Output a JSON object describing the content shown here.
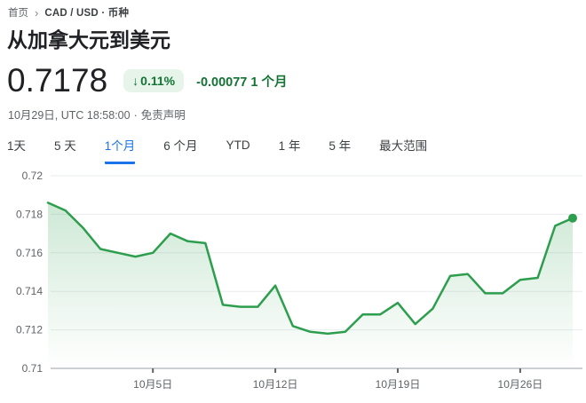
{
  "breadcrumb": {
    "home": "首页",
    "current": "CAD / USD · 币种"
  },
  "title": "从加拿大元到美元",
  "quote": {
    "price": "0.7178",
    "change_arrow": "↓",
    "change_percent": "0.11%",
    "change_absolute": "-0.00077",
    "change_period": "1 个月",
    "timestamp": "10月29日, UTC 18:58:00",
    "separator": "·",
    "disclaimer": "免责声明"
  },
  "range_tabs": [
    {
      "id": "1d",
      "label": "1天",
      "selected": false
    },
    {
      "id": "5d",
      "label": "5 天",
      "selected": false
    },
    {
      "id": "1m",
      "label": "1个月",
      "selected": true
    },
    {
      "id": "6m",
      "label": "6 个月",
      "selected": false
    },
    {
      "id": "ytd",
      "label": "YTD",
      "selected": false
    },
    {
      "id": "1y",
      "label": "1 年",
      "selected": false
    },
    {
      "id": "5y",
      "label": "5 年",
      "selected": false
    },
    {
      "id": "max",
      "label": "最大范围",
      "selected": false
    }
  ],
  "colors": {
    "green_text": "#137333",
    "pill_bg": "#e6f4ea",
    "line_green": "#2d9e4d",
    "tab_blue": "#1a73e8",
    "gridline": "#e9ebee",
    "axis_line": "#9aa0a6",
    "tick": "#5f6368",
    "axis_label": "#5f6368"
  },
  "chart_data": {
    "type": "area",
    "title": "从加拿大元到美元 1个月走势",
    "x": [
      "9月29日",
      "9月30日",
      "10月1日",
      "10月2日",
      "10月3日",
      "10月4日",
      "10月5日",
      "10月6日",
      "10月7日",
      "10月8日",
      "10月9日",
      "10月10日",
      "10月11日",
      "10月12日",
      "10月13日",
      "10月14日",
      "10月15日",
      "10月16日",
      "10月17日",
      "10月18日",
      "10月19日",
      "10月20日",
      "10月21日",
      "10月22日",
      "10月23日",
      "10月24日",
      "10月25日",
      "10月26日",
      "10月27日",
      "10月28日",
      "10月29日"
    ],
    "values": [
      0.7186,
      0.7182,
      0.7173,
      0.7162,
      0.716,
      0.7158,
      0.716,
      0.717,
      0.7166,
      0.7165,
      0.7133,
      0.7132,
      0.7132,
      0.7143,
      0.7122,
      0.7119,
      0.7118,
      0.7119,
      0.7128,
      0.7128,
      0.7134,
      0.7123,
      0.7131,
      0.7148,
      0.7149,
      0.7139,
      0.7139,
      0.7146,
      0.7147,
      0.7174,
      0.7178
    ],
    "xlabel": "",
    "ylabel": "",
    "ylim": [
      0.71,
      0.72
    ],
    "y_ticks": [
      0.71,
      0.712,
      0.714,
      0.716,
      0.718,
      0.72
    ],
    "y_tick_labels": [
      "0.71",
      "0.712",
      "0.714",
      "0.716",
      "0.718",
      "0.72"
    ],
    "x_tick_labels": [
      "10月5日",
      "10月12日",
      "10月19日",
      "10月26日"
    ],
    "x_tick_indices": [
      6,
      13,
      20,
      27
    ],
    "grid": true,
    "legend": "none",
    "end_marker": true
  }
}
